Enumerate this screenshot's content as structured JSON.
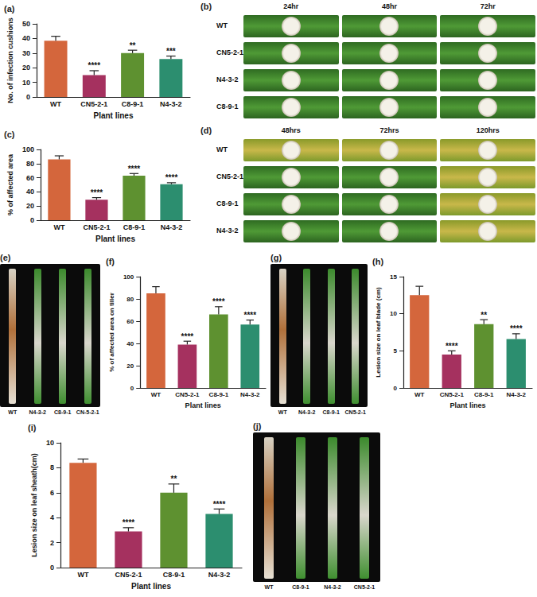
{
  "chart_data": [
    {
      "type": "bar",
      "label": "(a)",
      "categories": [
        "WT",
        "CN5-2-1",
        "C8-9-1",
        "N4-3-2"
      ],
      "values": [
        38.5,
        15,
        30,
        26
      ],
      "errors": [
        3,
        3,
        2,
        2
      ],
      "significance": [
        null,
        "****",
        "**",
        "***"
      ],
      "colors": [
        "#D4663C",
        "#A5315F",
        "#5E9130",
        "#2C8E6F"
      ],
      "x_label": "Plant lines",
      "y_label": "No. of infection cushions",
      "ylim": [
        0,
        50
      ],
      "yticks": [
        0,
        10,
        20,
        30,
        40,
        50
      ]
    },
    {
      "type": "bar",
      "label": "(c)",
      "categories": [
        "WT",
        "CN5-2-1",
        "C8-9-1",
        "N4-3-2"
      ],
      "values": [
        86,
        29,
        63,
        51
      ],
      "errors": [
        5,
        3,
        3,
        2
      ],
      "significance": [
        null,
        "****",
        "****",
        "****"
      ],
      "colors": [
        "#D4663C",
        "#A5315F",
        "#5E9130",
        "#2C8E6F"
      ],
      "x_label": "Plant lines",
      "y_label": "% of affected area",
      "ylim": [
        0,
        100
      ],
      "yticks": [
        0,
        20,
        40,
        60,
        80,
        100
      ]
    },
    {
      "type": "bar",
      "label": "(f)",
      "categories": [
        "WT",
        "CN5-2-1",
        "C8-9-1",
        "N4-3-2"
      ],
      "values": [
        85,
        39,
        66,
        57
      ],
      "errors": [
        6,
        3,
        7,
        4
      ],
      "significance": [
        null,
        "****",
        "****",
        "****"
      ],
      "colors": [
        "#D4663C",
        "#A5315F",
        "#5E9130",
        "#2C8E6F"
      ],
      "x_label": "Plant lines",
      "y_label": "% of affected area on tiller",
      "ylim": [
        0,
        100
      ],
      "yticks": [
        0,
        20,
        40,
        60,
        80,
        100
      ]
    },
    {
      "type": "bar",
      "label": "(h)",
      "categories": [
        "WT",
        "CN5-2-1",
        "C8-9-1",
        "N4-3-2"
      ],
      "values": [
        12.5,
        4.5,
        8.6,
        6.6
      ],
      "errors": [
        1.2,
        0.5,
        0.6,
        0.7
      ],
      "significance": [
        null,
        "****",
        "**",
        "****"
      ],
      "colors": [
        "#D4663C",
        "#A5315F",
        "#5E9130",
        "#2C8E6F"
      ],
      "x_label": "Plant lines",
      "y_label": "Lesion size on leaf blade (cm)",
      "ylim": [
        0,
        15
      ],
      "yticks": [
        0,
        5,
        10,
        15
      ]
    },
    {
      "type": "bar",
      "label": "(i)",
      "categories": [
        "WT",
        "CN5-2-1",
        "C8-9-1",
        "N4-3-2"
      ],
      "values": [
        8.4,
        2.9,
        6.0,
        4.3
      ],
      "errors": [
        0.3,
        0.3,
        0.7,
        0.4
      ],
      "significance": [
        null,
        "****",
        "**",
        "****"
      ],
      "colors": [
        "#D4663C",
        "#A5315F",
        "#5E9130",
        "#2C8E6F"
      ],
      "x_label": "Plant lines",
      "y_label": "Lesion size on leaf sheath(cm)",
      "ylim": [
        0,
        10
      ],
      "yticks": [
        0,
        2,
        4,
        6,
        8,
        10
      ]
    }
  ],
  "images": [
    {
      "label": "(b)",
      "columns": [
        "24hr",
        "48hr",
        "72hr"
      ],
      "rows": [
        "WT",
        "CN5-2-1",
        "N4-3-2",
        "C8-9-1"
      ]
    },
    {
      "label": "(d)",
      "columns": [
        "48hrs",
        "72hrs",
        "120hrs"
      ],
      "rows": [
        "WT",
        "CN5-2-1",
        "C8-9-1",
        "N4-3-2"
      ]
    },
    {
      "label": "(e)",
      "stems": [
        "WT",
        "N4-3-2",
        "C8-9-1",
        "CN-5-2-1"
      ]
    },
    {
      "label": "(g)",
      "stems": [
        "WT",
        "N4-3-2",
        "C8-9-1",
        "CN5-2-1"
      ]
    },
    {
      "label": "(j)",
      "stems": [
        "WT",
        "C8-9-1",
        "N4-3-2",
        "CN5-2-1"
      ]
    }
  ]
}
